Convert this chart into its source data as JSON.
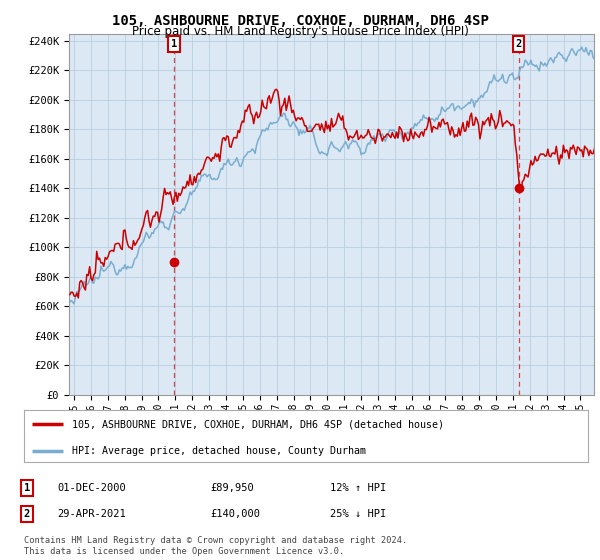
{
  "title": "105, ASHBOURNE DRIVE, COXHOE, DURHAM, DH6 4SP",
  "subtitle": "Price paid vs. HM Land Registry's House Price Index (HPI)",
  "ylabel_ticks": [
    "£0",
    "£20K",
    "£40K",
    "£60K",
    "£80K",
    "£100K",
    "£120K",
    "£140K",
    "£160K",
    "£180K",
    "£200K",
    "£220K",
    "£240K"
  ],
  "ytick_values": [
    0,
    20000,
    40000,
    60000,
    80000,
    100000,
    120000,
    140000,
    160000,
    180000,
    200000,
    220000,
    240000
  ],
  "ylim": [
    0,
    245000
  ],
  "xlim_start": 1994.7,
  "xlim_end": 2025.8,
  "xtick_years": [
    1995,
    1996,
    1997,
    1998,
    1999,
    2000,
    2001,
    2002,
    2003,
    2004,
    2005,
    2006,
    2007,
    2008,
    2009,
    2010,
    2011,
    2012,
    2013,
    2014,
    2015,
    2016,
    2017,
    2018,
    2019,
    2020,
    2021,
    2022,
    2023,
    2024,
    2025
  ],
  "sale1_x": 2000.917,
  "sale1_y": 89950,
  "sale2_x": 2021.33,
  "sale2_y": 140000,
  "sale1_date": "01-DEC-2000",
  "sale1_price": "£89,950",
  "sale1_hpi": "12% ↑ HPI",
  "sale2_date": "29-APR-2021",
  "sale2_price": "£140,000",
  "sale2_hpi": "25% ↓ HPI",
  "red_color": "#cc0000",
  "blue_color": "#7aadcf",
  "plot_bg_color": "#dce9f5",
  "legend_label_red": "105, ASHBOURNE DRIVE, COXHOE, DURHAM, DH6 4SP (detached house)",
  "legend_label_blue": "HPI: Average price, detached house, County Durham",
  "footnote": "Contains HM Land Registry data © Crown copyright and database right 2024.\nThis data is licensed under the Open Government Licence v3.0.",
  "background_color": "#ffffff",
  "grid_color": "#b8cfe0"
}
